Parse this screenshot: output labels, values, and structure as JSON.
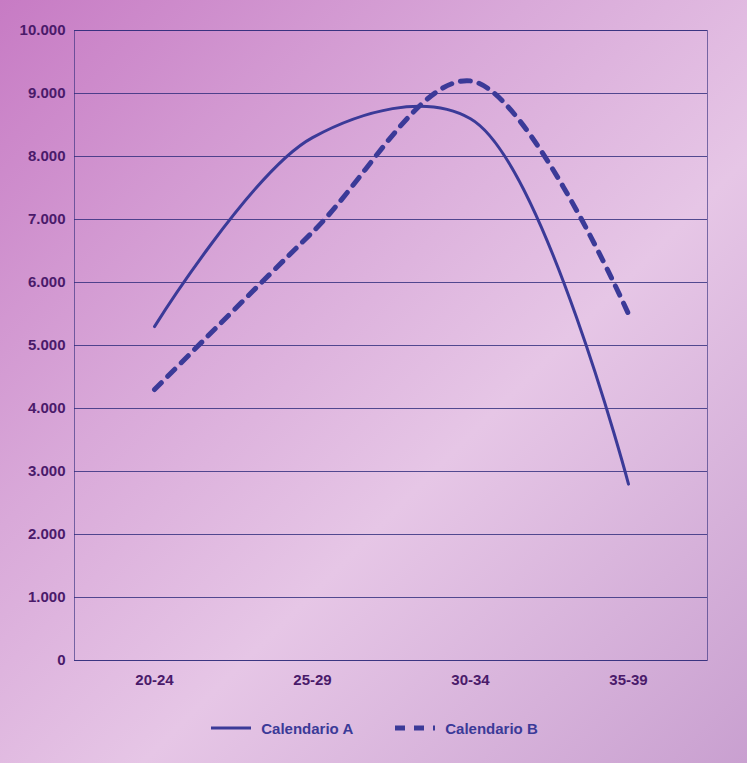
{
  "chart_data": {
    "type": "line",
    "categories": [
      "20-24",
      "25-29",
      "30-34",
      "35-39"
    ],
    "series": [
      {
        "name": "Calendario A",
        "color": "#3b3a98",
        "line_style": "solid",
        "values": [
          5300,
          8300,
          8600,
          2800
        ]
      },
      {
        "name": "Calendario B",
        "color": "#3b3a98",
        "line_style": "dashed",
        "values": [
          4300,
          6800,
          9200,
          5500
        ]
      }
    ],
    "ylim": [
      0,
      10000
    ],
    "yticks": [
      0,
      {
        "value": 1000,
        "label": "1.000"
      },
      {
        "value": 2000,
        "label": "2.000"
      },
      {
        "value": 3000,
        "label": "3.000"
      },
      {
        "value": 4000,
        "label": "4.000"
      },
      {
        "value": 5000,
        "label": "5.000"
      },
      {
        "value": 6000,
        "label": "6.000"
      },
      {
        "value": 7000,
        "label": "7.000"
      },
      {
        "value": 8000,
        "label": "8.000"
      },
      {
        "value": 9000,
        "label": "9.000"
      },
      {
        "value": 10000,
        "label": "10.000"
      }
    ],
    "grid": true,
    "legend": "bottom"
  }
}
